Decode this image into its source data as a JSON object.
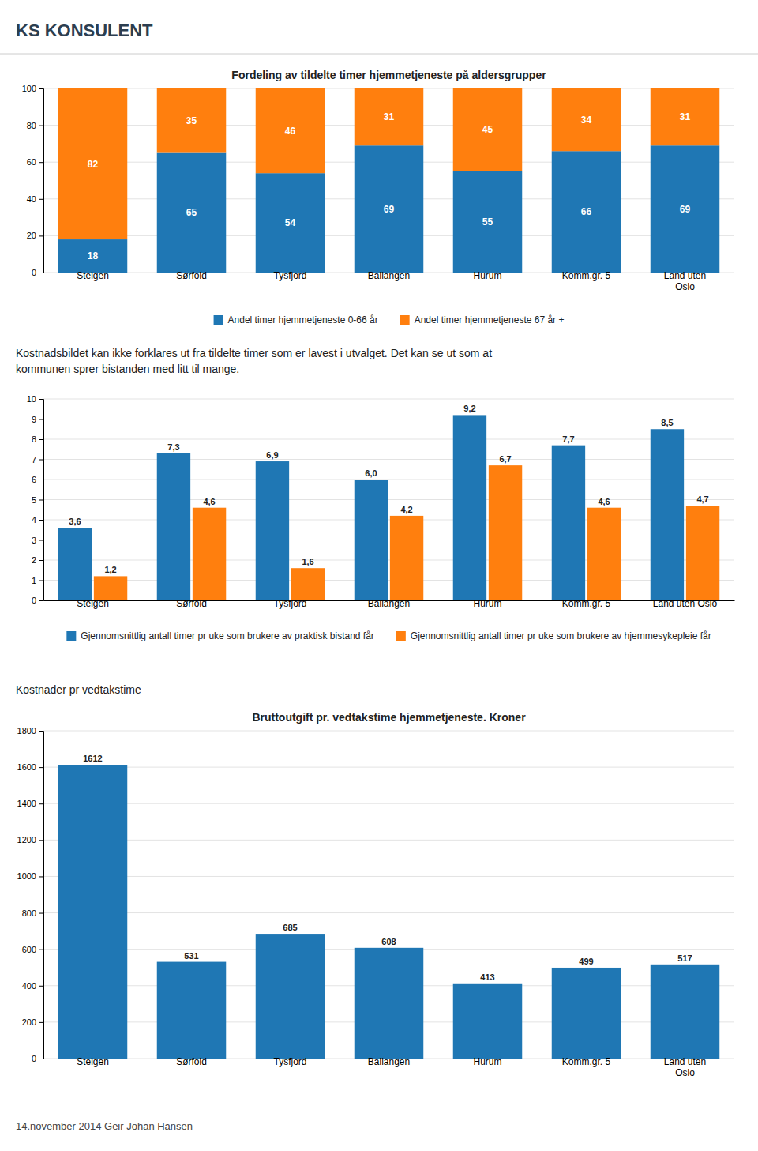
{
  "header": "KS KONSULENT",
  "paragraphs": [
    "Kostnadsbildet kan ikke forklares ut fra tildelte timer som er lavest i utvalget. Det kan se ut som at",
    "kommunen sprer bistanden med litt til mange."
  ],
  "section_heading": "Kostnader pr vedtakstime",
  "footer": "14.november 2014  Geir Johan Hansen",
  "chart_data": [
    {
      "type": "bar",
      "title": "Fordeling av tildelte timer hjemmetjeneste på aldersgrupper",
      "categories": [
        "Steigen",
        "Sørfold",
        "Tysfjord",
        "Ballangen",
        "Hurum",
        "Komm.gr. 5",
        "Land uten\nOslo"
      ],
      "series": [
        {
          "name": "Andel timer hjemmetjeneste 0-66 år",
          "values": [
            18,
            65,
            54,
            69,
            55,
            66,
            69
          ]
        },
        {
          "name": "Andel timer hjemmetjeneste 67 år +",
          "values": [
            82,
            35,
            46,
            31,
            45,
            34,
            31
          ]
        }
      ],
      "stacked": true,
      "ylim": [
        0,
        100
      ],
      "yticks": [
        0,
        20,
        40,
        60,
        80,
        100
      ],
      "grid": true,
      "legend": "bottom",
      "data_labels": true
    },
    {
      "type": "bar",
      "categories": [
        "Steigen",
        "Sørfold",
        "Tysfjord",
        "Ballangen",
        "Hurum",
        "Komm.gr. 5",
        "Land uten Oslo"
      ],
      "series": [
        {
          "name": "Gjennomsnittlig antall timer pr uke som brukere av praktisk bistand får",
          "values": [
            3.6,
            7.3,
            6.9,
            6.0,
            9.2,
            7.7,
            8.5
          ],
          "value_labels": [
            "3,6",
            "7,3",
            "6,9",
            "6,0",
            "9,2",
            "7,7",
            "8,5"
          ]
        },
        {
          "name": "Gjennomsnittlig antall timer pr uke som brukere av hjemmesykepleie får",
          "values": [
            1.2,
            4.6,
            1.6,
            4.2,
            6.7,
            4.6,
            4.7
          ],
          "value_labels": [
            "1,2",
            "4,6",
            "1,6",
            "4,2",
            "6,7",
            "4,6",
            "4,7"
          ]
        }
      ],
      "ylim": [
        0,
        10
      ],
      "yticks": [
        0,
        1,
        2,
        3,
        4,
        5,
        6,
        7,
        8,
        9,
        10
      ],
      "grid": true,
      "legend": "bottom",
      "data_labels": true
    },
    {
      "type": "bar",
      "title": "Bruttoutgift pr. vedtakstime hjemmetjeneste. Kroner",
      "categories": [
        "Steigen",
        "Sørfold",
        "Tysfjord",
        "Ballangen",
        "Hurum",
        "Komm.gr. 5",
        "Land uten\nOslo"
      ],
      "values": [
        1612,
        531,
        685,
        608,
        413,
        499,
        517
      ],
      "ylim": [
        0,
        1800
      ],
      "yticks": [
        0,
        200,
        400,
        600,
        800,
        1000,
        1200,
        1400,
        1600,
        1800
      ],
      "grid": true,
      "data_labels": true
    }
  ]
}
